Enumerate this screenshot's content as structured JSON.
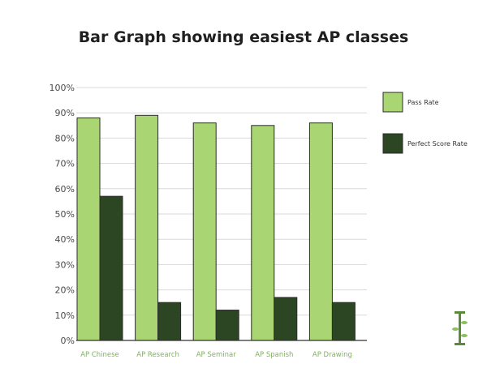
{
  "chart_data": {
    "type": "bar",
    "title": "Bar Graph showing easiest AP classes",
    "categories": [
      "AP Chinese",
      "AP Research",
      "AP Seminar",
      "AP Spanish",
      "AP Drawing"
    ],
    "series": [
      {
        "name": "Pass Rate",
        "values": [
          88,
          89,
          86,
          85,
          86
        ],
        "color": "#a9d672"
      },
      {
        "name": "Perfect Score Rate",
        "values": [
          57,
          15,
          12,
          17,
          15
        ],
        "color": "#2c4523"
      }
    ],
    "ylim": [
      0,
      100
    ],
    "yticks": [
      "0%",
      "10%",
      "20%",
      "30%",
      "40%",
      "50%",
      "60%",
      "70%",
      "80%",
      "90%",
      "100%"
    ],
    "grid": true,
    "legend_position": "right"
  },
  "logo": {
    "icon": "tree-logo-icon",
    "color": "#5c8a3c"
  }
}
